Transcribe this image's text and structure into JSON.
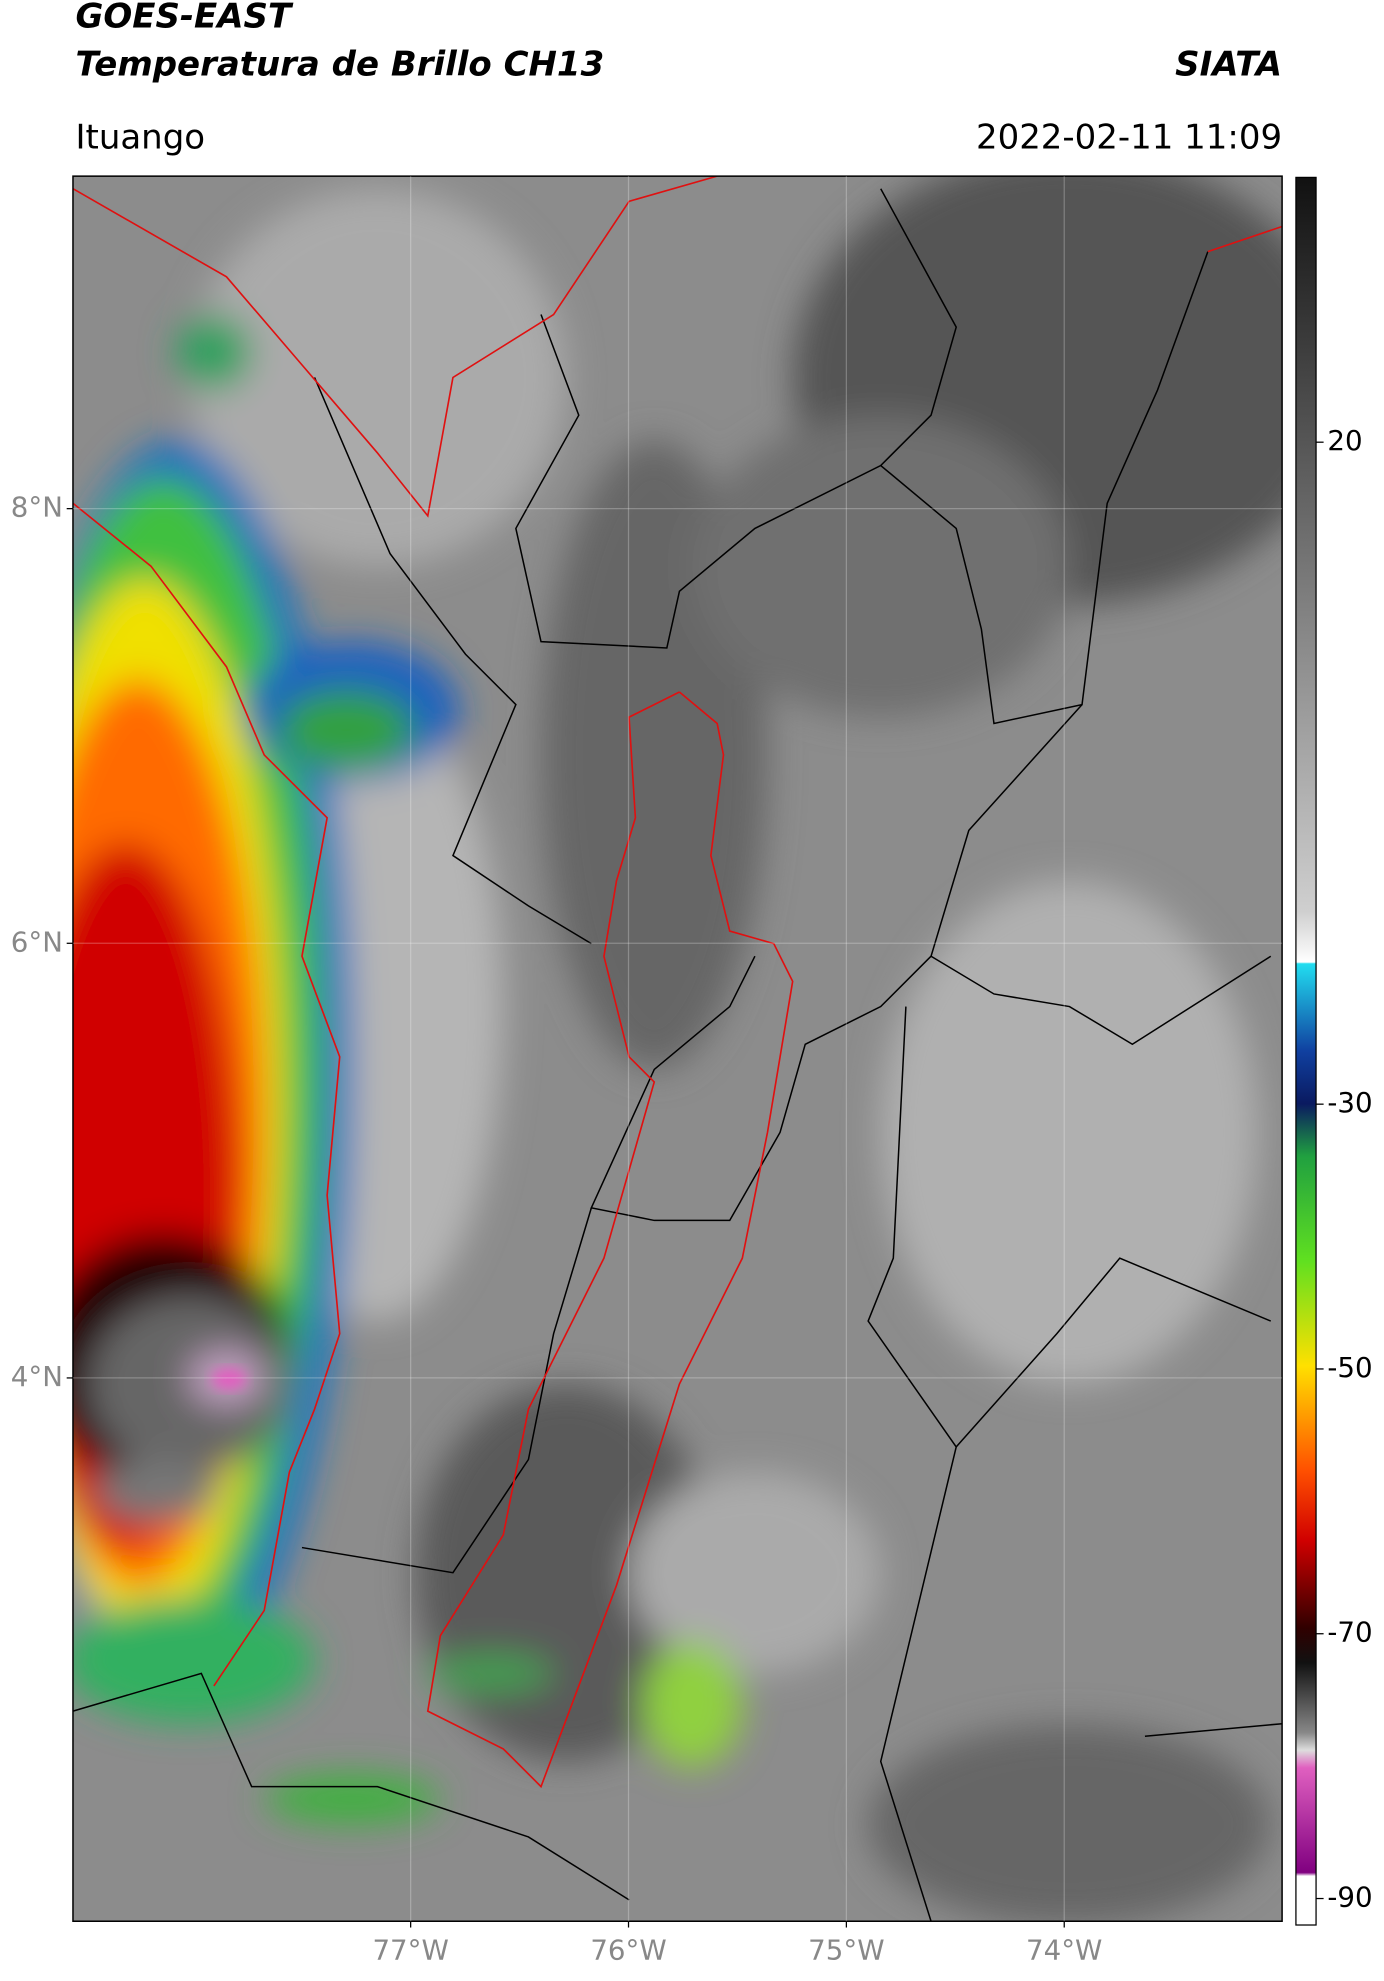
{
  "header": {
    "satellite": "GOES-EAST",
    "product": "Temperatura de Brillo CH13",
    "brand": "SIATA",
    "location": "Ituango",
    "datetime": "2022-02-11 11:09"
  },
  "map": {
    "xlim": [
      -78.55,
      -73
    ],
    "ylim": [
      1.5,
      9.53
    ],
    "xticks": [
      {
        "value": -77,
        "label": "77°W"
      },
      {
        "value": -76,
        "label": "76°W"
      },
      {
        "value": -75,
        "label": "75°W"
      },
      {
        "value": -74,
        "label": "74°W"
      }
    ],
    "yticks": [
      {
        "value": 8,
        "label": "8°N"
      },
      {
        "value": 6,
        "label": "6°N"
      },
      {
        "value": 4,
        "label": "4°N"
      }
    ]
  },
  "colorbar": {
    "range": [
      -92,
      40
    ],
    "ticks": [
      -90,
      -70,
      -50,
      -30,
      20
    ]
  }
}
